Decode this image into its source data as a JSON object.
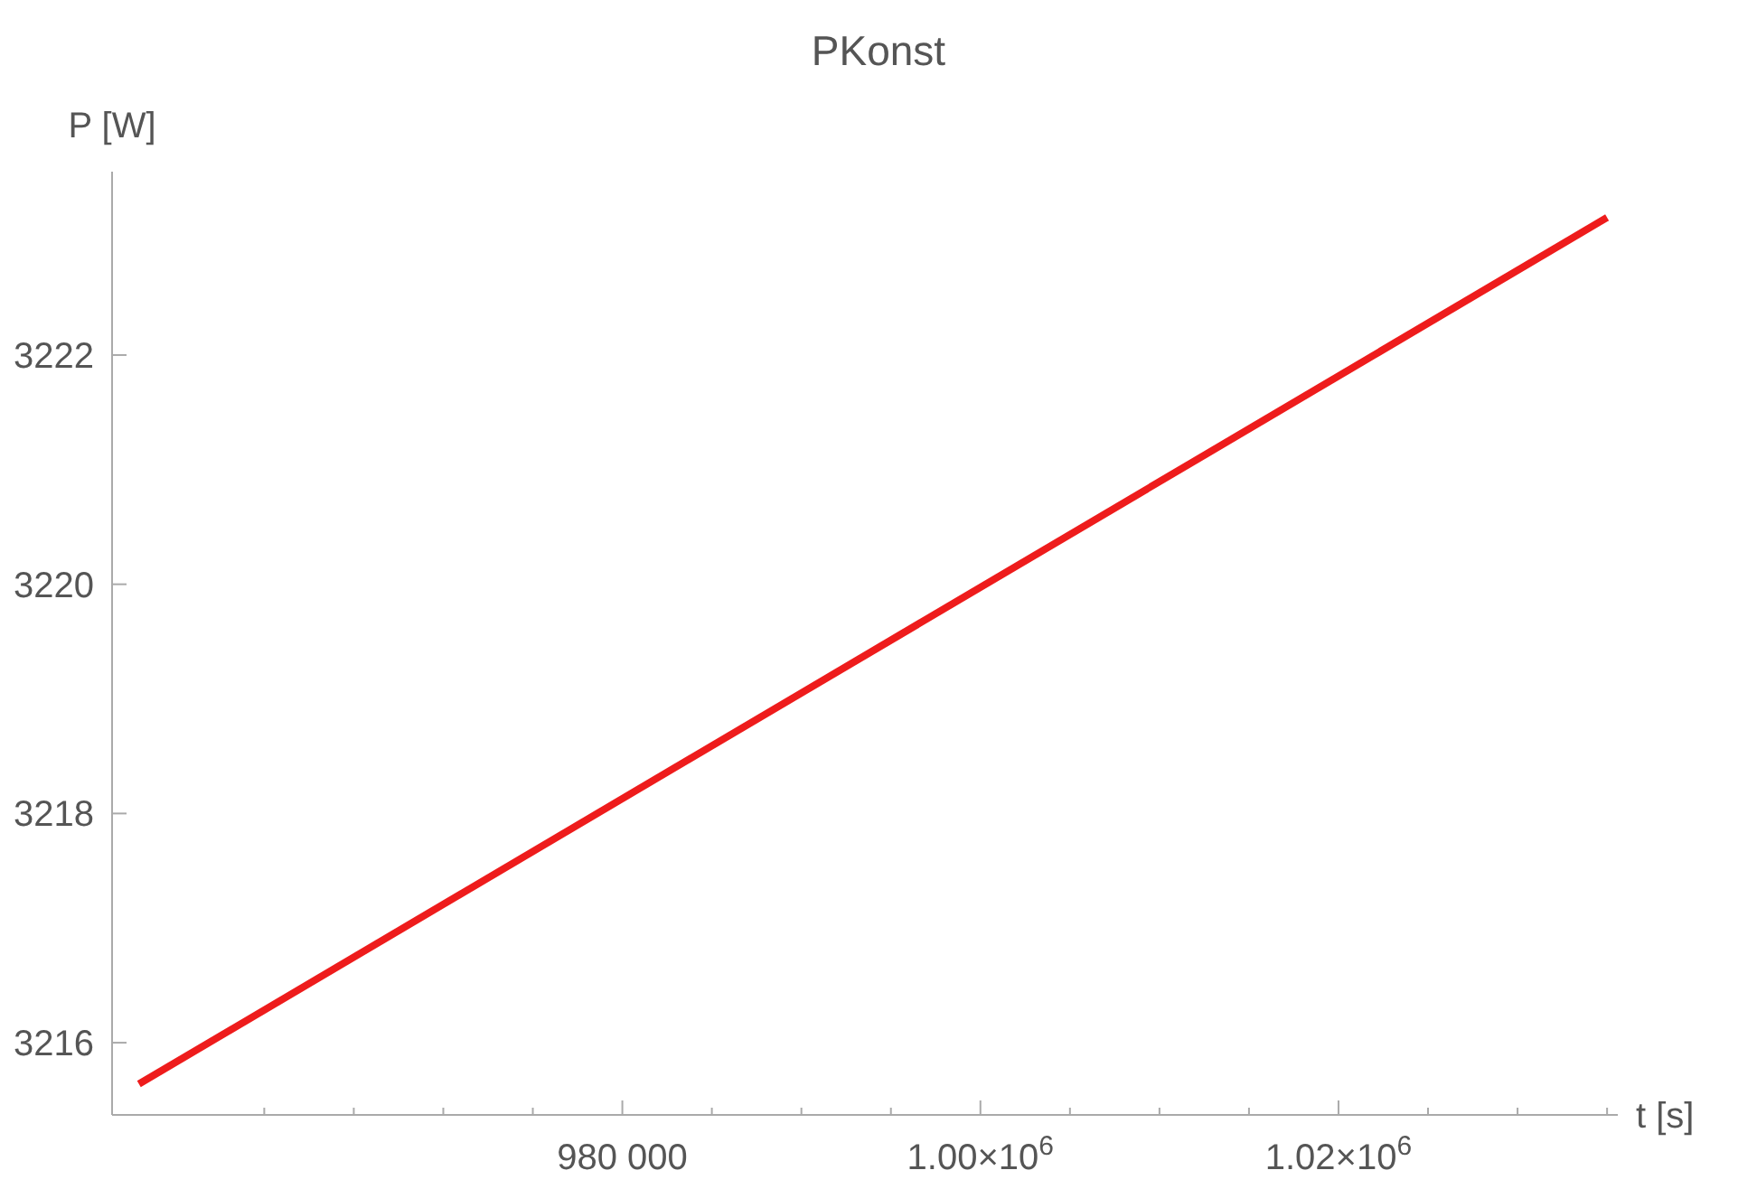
{
  "chart_data": {
    "type": "line",
    "title": "PKonst",
    "xlabel": "t [s]",
    "ylabel": "P [W]",
    "xlim": [
      951500,
      1035600
    ],
    "ylim": [
      3215.37,
      3223.6
    ],
    "xticks": [
      {
        "value": 960000,
        "label": null
      },
      {
        "value": 965000,
        "label": null
      },
      {
        "value": 970000,
        "label": null
      },
      {
        "value": 975000,
        "label": null
      },
      {
        "value": 980000,
        "label": "980 000"
      },
      {
        "value": 985000,
        "label": null
      },
      {
        "value": 990000,
        "label": null
      },
      {
        "value": 995000,
        "label": null
      },
      {
        "value": 1000000,
        "label": "1.00×10$^{6}$"
      },
      {
        "value": 1005000,
        "label": null
      },
      {
        "value": 1010000,
        "label": null
      },
      {
        "value": 1015000,
        "label": null
      },
      {
        "value": 1020000,
        "label": "1.02×10$^{6}$"
      },
      {
        "value": 1025000,
        "label": null
      },
      {
        "value": 1030000,
        "label": null
      },
      {
        "value": 1035000,
        "label": null
      }
    ],
    "yticks": [
      3216,
      3218,
      3220,
      3222
    ],
    "series": [
      {
        "color": "#ee1c1c",
        "x": [
          953000,
          1035000
        ],
        "values": [
          3215.64,
          3223.2
        ]
      }
    ],
    "grid": false,
    "marker": "none",
    "line_style": "solid"
  }
}
